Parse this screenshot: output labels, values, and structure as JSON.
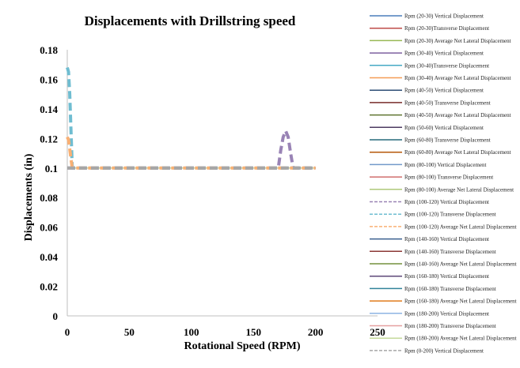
{
  "chart_data": {
    "type": "line",
    "title": "Displacements with Drillstring speed",
    "xlabel": "Rotational Speed (RPM)",
    "ylabel": "Displacements (in)",
    "xlim": [
      0,
      250
    ],
    "ylim": [
      0,
      0.18
    ],
    "xticks": [
      "0",
      "50",
      "100",
      "150",
      "200",
      "250"
    ],
    "yticks": [
      "0",
      "0.02",
      "0.04",
      "0.06",
      "0.08",
      "0.1",
      "0.12",
      "0.14",
      "0.16",
      "0.18"
    ],
    "grid": false,
    "legend_position": "right",
    "series": [
      {
        "name": "Rpm (20-30) Vertical Displacement",
        "color": "#4a7ebb",
        "style": "solid",
        "x": [
          0,
          200
        ],
        "y": [
          0.1,
          0.1
        ]
      },
      {
        "name": "Rpm (20-30)Transverse Displacement",
        "color": "#be4b48",
        "style": "solid",
        "x": [
          0,
          200
        ],
        "y": [
          0.1,
          0.1
        ]
      },
      {
        "name": "Rpm (20-30) Average Net Lateral Displacement",
        "color": "#98b954",
        "style": "solid",
        "x": [
          0,
          200
        ],
        "y": [
          0.1,
          0.1
        ]
      },
      {
        "name": "Rpm (30-40) Vertical Displacement",
        "color": "#7d60a0",
        "style": "solid",
        "x": [
          0,
          200
        ],
        "y": [
          0.1,
          0.1
        ]
      },
      {
        "name": "Rpm (30-40)Transverse Displacement",
        "color": "#46aac5",
        "style": "solid",
        "x": [
          0,
          200
        ],
        "y": [
          0.1,
          0.1
        ]
      },
      {
        "name": "Rpm (30-40) Average Net Lateral Displacement",
        "color": "#f59d56",
        "style": "solid",
        "x": [
          0,
          200
        ],
        "y": [
          0.1,
          0.1
        ]
      },
      {
        "name": "Rpm (40-50) Vertical Displacement",
        "color": "#2c4d75",
        "style": "solid",
        "x": [
          0,
          200
        ],
        "y": [
          0.1,
          0.1
        ]
      },
      {
        "name": "Rpm (40-50) Transverse Displacement",
        "color": "#772c2a",
        "style": "solid",
        "x": [
          0,
          200
        ],
        "y": [
          0.1,
          0.1
        ]
      },
      {
        "name": "Rpm (40-50) Average Net Lateral Displacement",
        "color": "#5f7530",
        "style": "solid",
        "x": [
          0,
          200
        ],
        "y": [
          0.1,
          0.1
        ]
      },
      {
        "name": "Rpm (50-60) Vertical Displacement",
        "color": "#4d3b62",
        "style": "solid",
        "x": [
          0,
          200
        ],
        "y": [
          0.1,
          0.1
        ]
      },
      {
        "name": "Rpm (60-80) Transverse Displacement",
        "color": "#276a7c",
        "style": "solid",
        "x": [
          0,
          200
        ],
        "y": [
          0.1,
          0.1
        ]
      },
      {
        "name": "Rpm (60-80) Average Net Lateral Displacement",
        "color": "#b65708",
        "style": "solid",
        "x": [
          0,
          200
        ],
        "y": [
          0.1,
          0.1
        ]
      },
      {
        "name": "Rpm (80-100) Vertical Displacement",
        "color": "#729aca",
        "style": "solid",
        "x": [
          0,
          200
        ],
        "y": [
          0.1,
          0.1
        ]
      },
      {
        "name": "Rpm (80-100) Transverse Displacement",
        "color": "#d16f6d",
        "style": "solid",
        "x": [
          0,
          200
        ],
        "y": [
          0.1,
          0.1
        ]
      },
      {
        "name": "Rpm (80-100) Average Net Lateral Displacement",
        "color": "#afc97a",
        "style": "solid",
        "x": [
          0,
          200
        ],
        "y": [
          0.1,
          0.1
        ]
      },
      {
        "name": "Rpm (100-120) Vertical Displacement",
        "color": "#9983b5",
        "style": "dashed",
        "x": [
          0,
          170,
          172,
          174,
          176,
          178,
          180,
          182,
          200
        ],
        "y": [
          0.1,
          0.1,
          0.112,
          0.121,
          0.125,
          0.121,
          0.11,
          0.1,
          0.1
        ]
      },
      {
        "name": "Rpm (100-120) Transverse Displacement",
        "color": "#6fbdd1",
        "style": "dashed",
        "x": [
          0,
          1,
          2,
          3,
          4,
          200
        ],
        "y": [
          0.168,
          0.165,
          0.15,
          0.125,
          0.1,
          0.1
        ]
      },
      {
        "name": "Rpm (100-120) Average Net Lateral Displacement",
        "color": "#f9b074",
        "style": "dashed",
        "x": [
          0,
          1,
          2,
          3,
          4,
          200
        ],
        "y": [
          0.121,
          0.119,
          0.113,
          0.106,
          0.1,
          0.1
        ]
      },
      {
        "name": "Rpm (140-160) Vertical Displacement",
        "color": "#3a5f8f",
        "style": "solid",
        "x": [
          0,
          200
        ],
        "y": [
          0.1,
          0.1
        ]
      },
      {
        "name": "Rpm (140-160) Transverse Displacement",
        "color": "#8c3836",
        "style": "solid",
        "x": [
          0,
          200
        ],
        "y": [
          0.1,
          0.1
        ]
      },
      {
        "name": "Rpm (140-160) Average Net Lateral Displacement",
        "color": "#74903d",
        "style": "solid",
        "x": [
          0,
          200
        ],
        "y": [
          0.1,
          0.1
        ]
      },
      {
        "name": "Rpm (160-180) Vertical Displacement",
        "color": "#5e4879",
        "style": "solid",
        "x": [
          0,
          200
        ],
        "y": [
          0.1,
          0.1
        ]
      },
      {
        "name": "Rpm (160-180) Transverse Displacement",
        "color": "#31839a",
        "style": "solid",
        "x": [
          0,
          200
        ],
        "y": [
          0.1,
          0.1
        ]
      },
      {
        "name": "Rpm (160-180) Average Net Lateral Displacement",
        "color": "#e07b1c",
        "style": "solid",
        "x": [
          0,
          200
        ],
        "y": [
          0.1,
          0.1
        ]
      },
      {
        "name": "Rpm (180-200) Vertical Displacement",
        "color": "#8eb4e3",
        "style": "solid",
        "x": [
          0,
          200
        ],
        "y": [
          0.1,
          0.1
        ]
      },
      {
        "name": "Rpm (180-200) Transverse Displacement",
        "color": "#e6a0a0",
        "style": "solid",
        "x": [
          0,
          200
        ],
        "y": [
          0.1,
          0.1
        ]
      },
      {
        "name": "Rpm (180-200) Average Net Lateral Displacement",
        "color": "#c4d99b",
        "style": "solid",
        "x": [
          0,
          200
        ],
        "y": [
          0.1,
          0.1
        ]
      },
      {
        "name": "Rpm (0-200) Vertical Displacement",
        "color": "#a6a6a6",
        "style": "dashed",
        "x": [
          0,
          200
        ],
        "y": [
          0.1,
          0.1
        ]
      }
    ]
  }
}
